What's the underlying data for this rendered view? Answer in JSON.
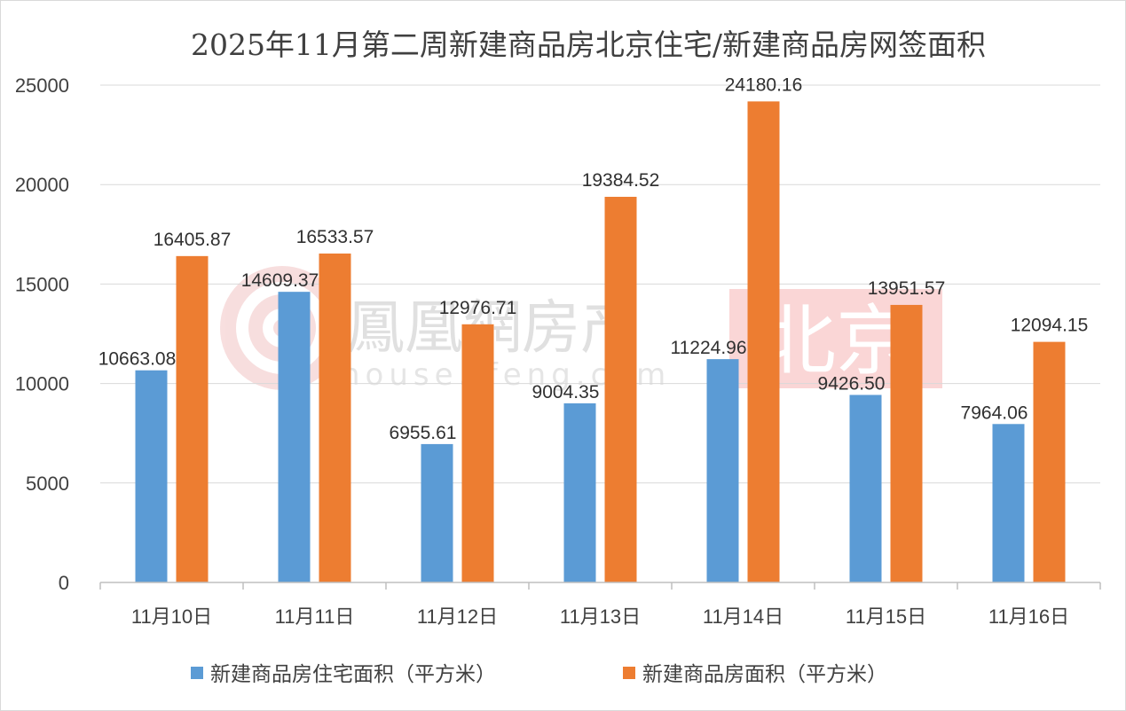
{
  "chart_data": {
    "type": "bar",
    "title": "2025年11月第二周新建商品房北京住宅/新建商品房网签面积",
    "categories": [
      "11月10日",
      "11月11日",
      "11月12日",
      "11月13日",
      "11月14日",
      "11月15日",
      "11月16日"
    ],
    "series": [
      {
        "name": "新建商品房住宅面积（平方米）",
        "color": "#5b9bd5",
        "values": [
          10663.08,
          14609.37,
          6955.61,
          9004.35,
          11224.96,
          9426.5,
          7964.06
        ],
        "labels": [
          "10663.08",
          "14609.37",
          "6955.61",
          "9004.35",
          "11224.96",
          "9426.50",
          "7964.06"
        ]
      },
      {
        "name": "新建商品房面积（平方米）",
        "color": "#ed7d31",
        "values": [
          16405.87,
          16533.57,
          12976.71,
          19384.52,
          24180.16,
          13951.57,
          12094.15
        ],
        "labels": [
          "16405.87",
          "16533.57",
          "12976.71",
          "19384.52",
          "24180.16",
          "13951.57",
          "12094.15"
        ]
      }
    ],
    "ylim": [
      0,
      25000
    ],
    "yticks": [
      0,
      5000,
      10000,
      15000,
      20000,
      25000
    ],
    "grid": true,
    "legend_position": "bottom"
  },
  "watermark": {
    "brand": "鳳凰網房产",
    "url": "house.ifeng.com",
    "city": "北京",
    "logo_icon": "ifeng-phoenix-logo"
  }
}
